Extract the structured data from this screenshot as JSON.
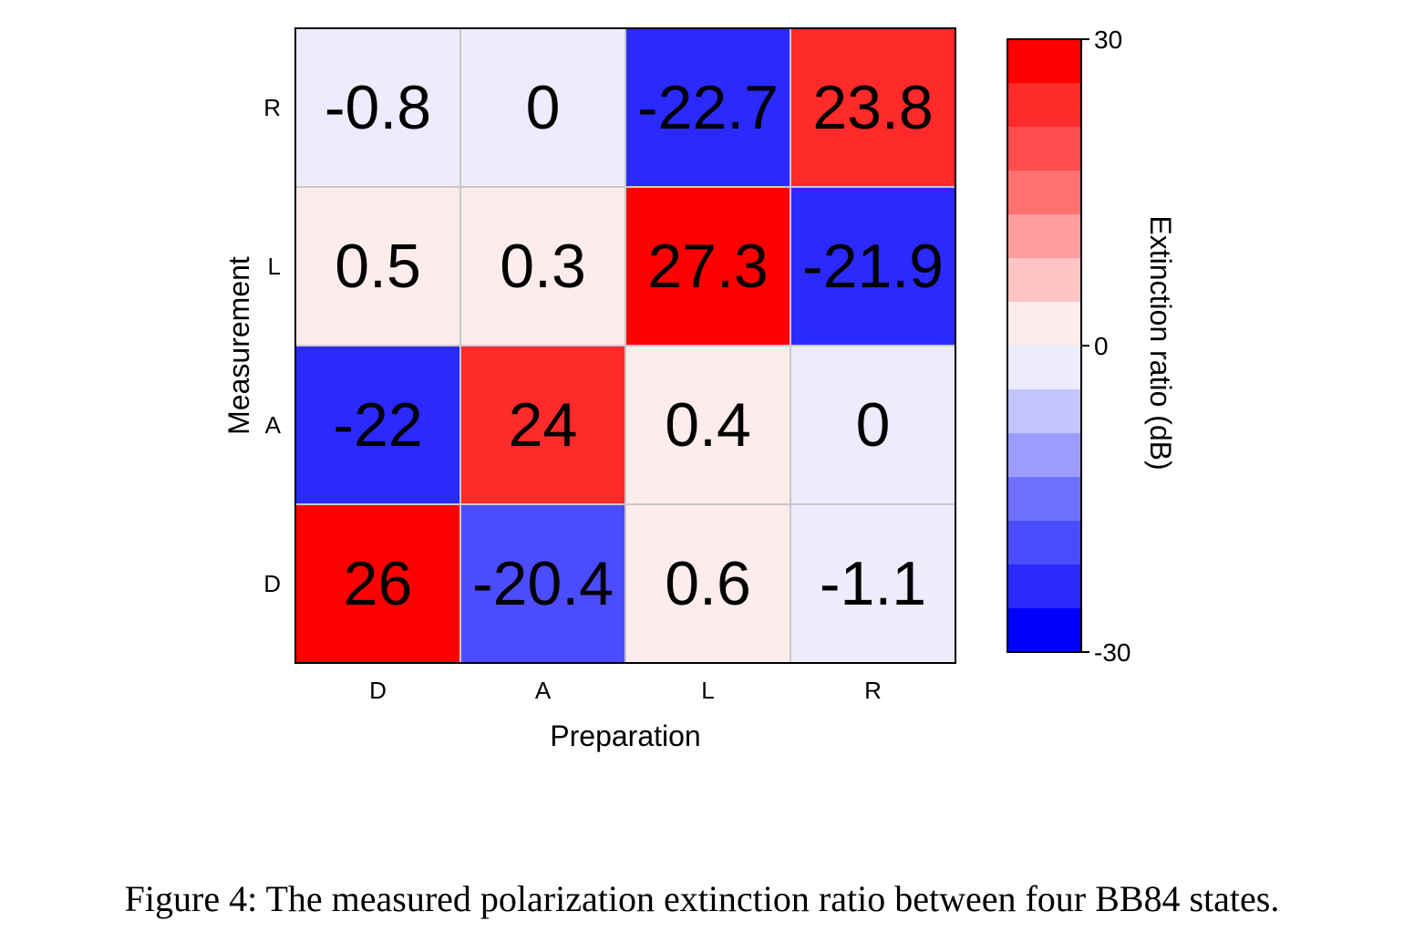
{
  "chart_data": {
    "type": "heatmap",
    "xlabel": "Preparation",
    "ylabel": "Measurement",
    "x_categories": [
      "D",
      "A",
      "L",
      "R"
    ],
    "y_categories_top_to_bottom": [
      "R",
      "L",
      "A",
      "D"
    ],
    "values_top_to_bottom": [
      [
        -0.8,
        0,
        -22.7,
        23.8
      ],
      [
        0.5,
        0.3,
        27.3,
        -21.9
      ],
      [
        -22,
        24,
        0.4,
        0
      ],
      [
        26,
        -20.4,
        0.6,
        -1.1
      ]
    ],
    "colorbar": {
      "label": "Extinction ratio (dB)",
      "range": [
        -30,
        30
      ],
      "ticks": [
        30,
        0,
        -30
      ],
      "steps_top_to_bottom": [
        "#ff0000",
        "#ff2a2a",
        "#ff4c4c",
        "#ff7070",
        "#ff9c9c",
        "#ffc4c4",
        "#fdecec",
        "#ececfd",
        "#c4c4ff",
        "#9c9cff",
        "#7070ff",
        "#4c4cff",
        "#2a2aff",
        "#0000ff"
      ]
    }
  },
  "caption": "Figure 4: The measured polarization extinction ratio between four BB84 states."
}
